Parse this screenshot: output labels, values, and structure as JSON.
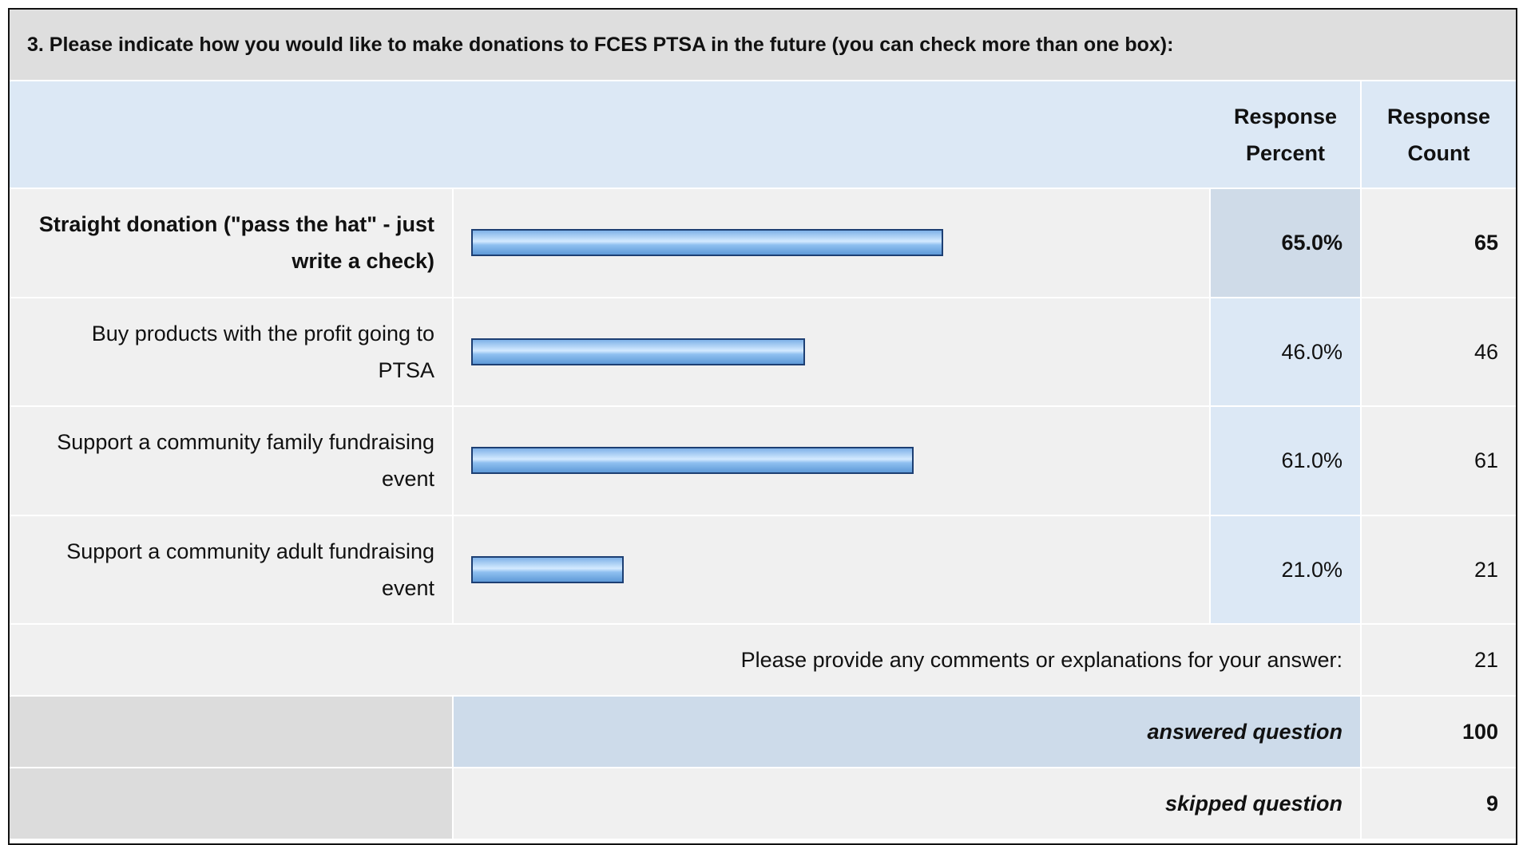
{
  "question": "3. Please indicate how you would like to make donations to FCES PTSA in the future (you can check more than one box):",
  "header": {
    "percent": "Response Percent",
    "count": "Response Count"
  },
  "rows": [
    {
      "label": "Straight donation (\"pass the hat\" - just write a check)",
      "percent": 65,
      "percent_label": "65.0%",
      "count": 65
    },
    {
      "label": "Buy products with the profit going to PTSA",
      "percent": 46,
      "percent_label": "46.0%",
      "count": 46
    },
    {
      "label": "Support a community family fundraising event",
      "percent": 61,
      "percent_label": "61.0%",
      "count": 61
    },
    {
      "label": "Support a community adult fundraising event",
      "percent": 21,
      "percent_label": "21.0%",
      "count": 21
    }
  ],
  "comments": {
    "label": "Please provide any comments or explanations for your answer:",
    "count": 21
  },
  "answered": {
    "label": "answered question",
    "count": 100
  },
  "skipped": {
    "label": "skipped question",
    "count": 9
  }
}
